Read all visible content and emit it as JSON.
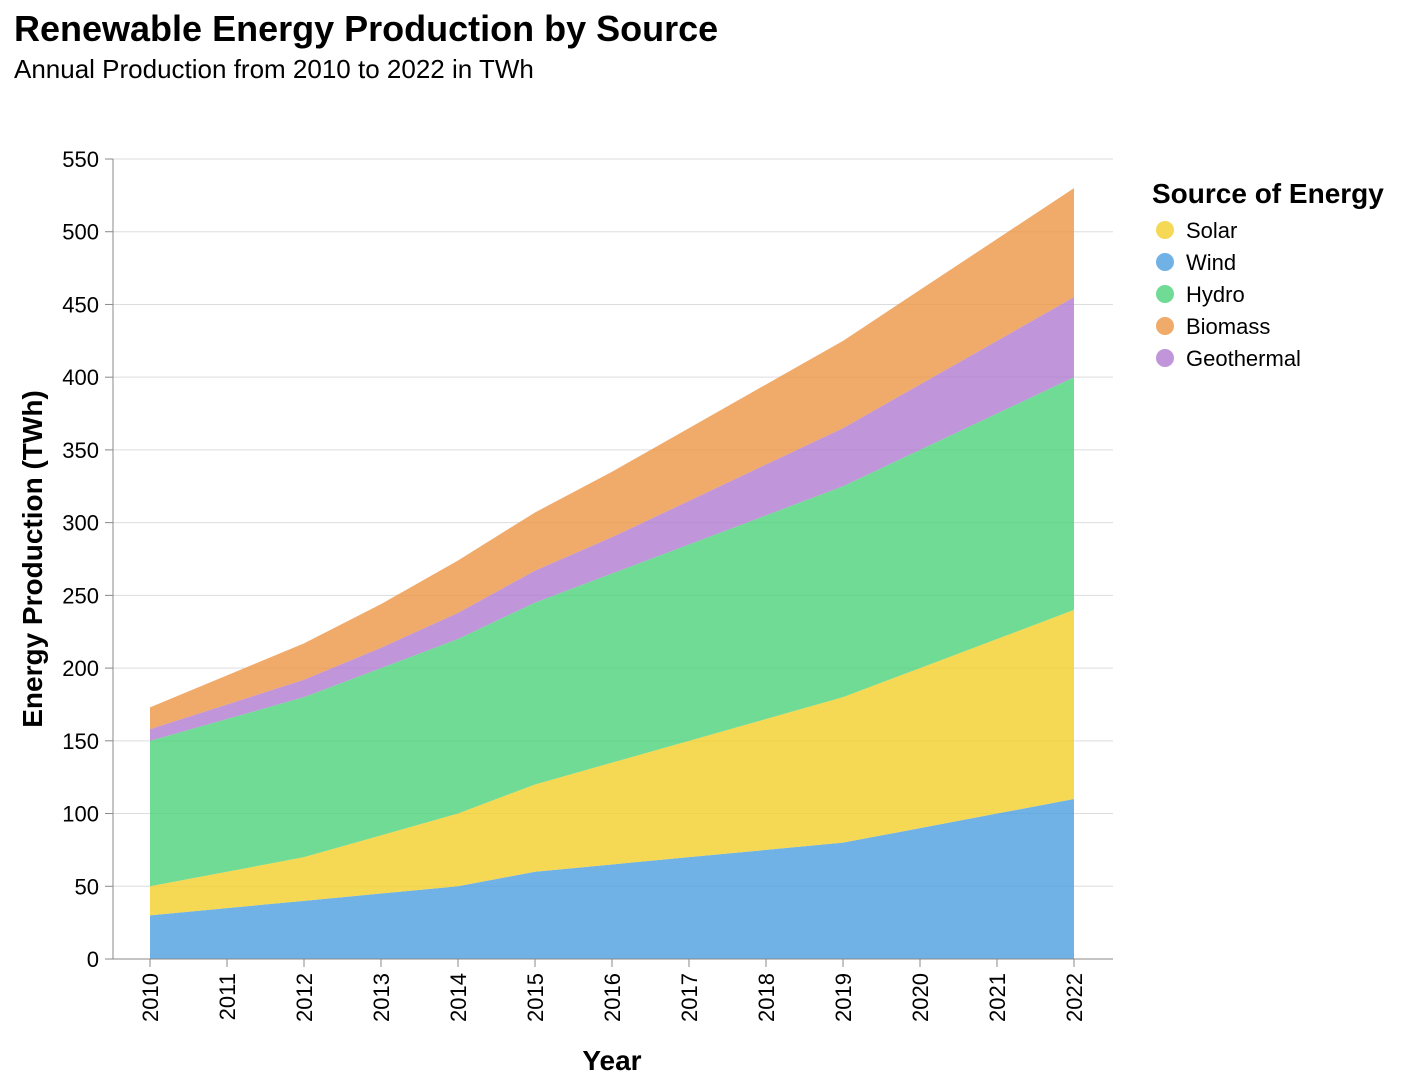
{
  "chart_data": {
    "type": "area",
    "stacked": true,
    "title": "Renewable Energy Production by Source",
    "subtitle": "Annual Production from 2010 to 2022 in TWh",
    "xlabel": "Year",
    "ylabel": "Energy Production (TWh)",
    "ylim": [
      0,
      550
    ],
    "yticks": [
      0,
      50,
      100,
      150,
      200,
      250,
      300,
      350,
      400,
      450,
      500,
      550
    ],
    "grid": true,
    "legend_title": "Source of Energy",
    "legend_position": "right",
    "x": [
      "2010",
      "2011",
      "2012",
      "2013",
      "2014",
      "2015",
      "2016",
      "2017",
      "2018",
      "2019",
      "2020",
      "2021",
      "2022"
    ],
    "series": [
      {
        "name": "Wind",
        "color": "#4c9fe0",
        "values": [
          30,
          35,
          40,
          45,
          50,
          60,
          65,
          70,
          75,
          80,
          90,
          100,
          110
        ]
      },
      {
        "name": "Solar",
        "color": "#f2cf2b",
        "values": [
          20,
          25,
          30,
          40,
          50,
          60,
          70,
          80,
          90,
          100,
          110,
          120,
          130
        ]
      },
      {
        "name": "Hydro",
        "color": "#4cd27a",
        "values": [
          100,
          105,
          110,
          115,
          120,
          125,
          130,
          135,
          140,
          145,
          150,
          155,
          160
        ]
      },
      {
        "name": "Geothermal",
        "color": "#b07ad0",
        "values": [
          8,
          10,
          12,
          14,
          18,
          22,
          25,
          30,
          35,
          40,
          45,
          50,
          55
        ]
      },
      {
        "name": "Biomass",
        "color": "#ec9545",
        "values": [
          15,
          20,
          25,
          30,
          36,
          40,
          45,
          50,
          55,
          60,
          65,
          70,
          75
        ]
      }
    ],
    "legend_order": [
      "Solar",
      "Wind",
      "Hydro",
      "Biomass",
      "Geothermal"
    ]
  }
}
